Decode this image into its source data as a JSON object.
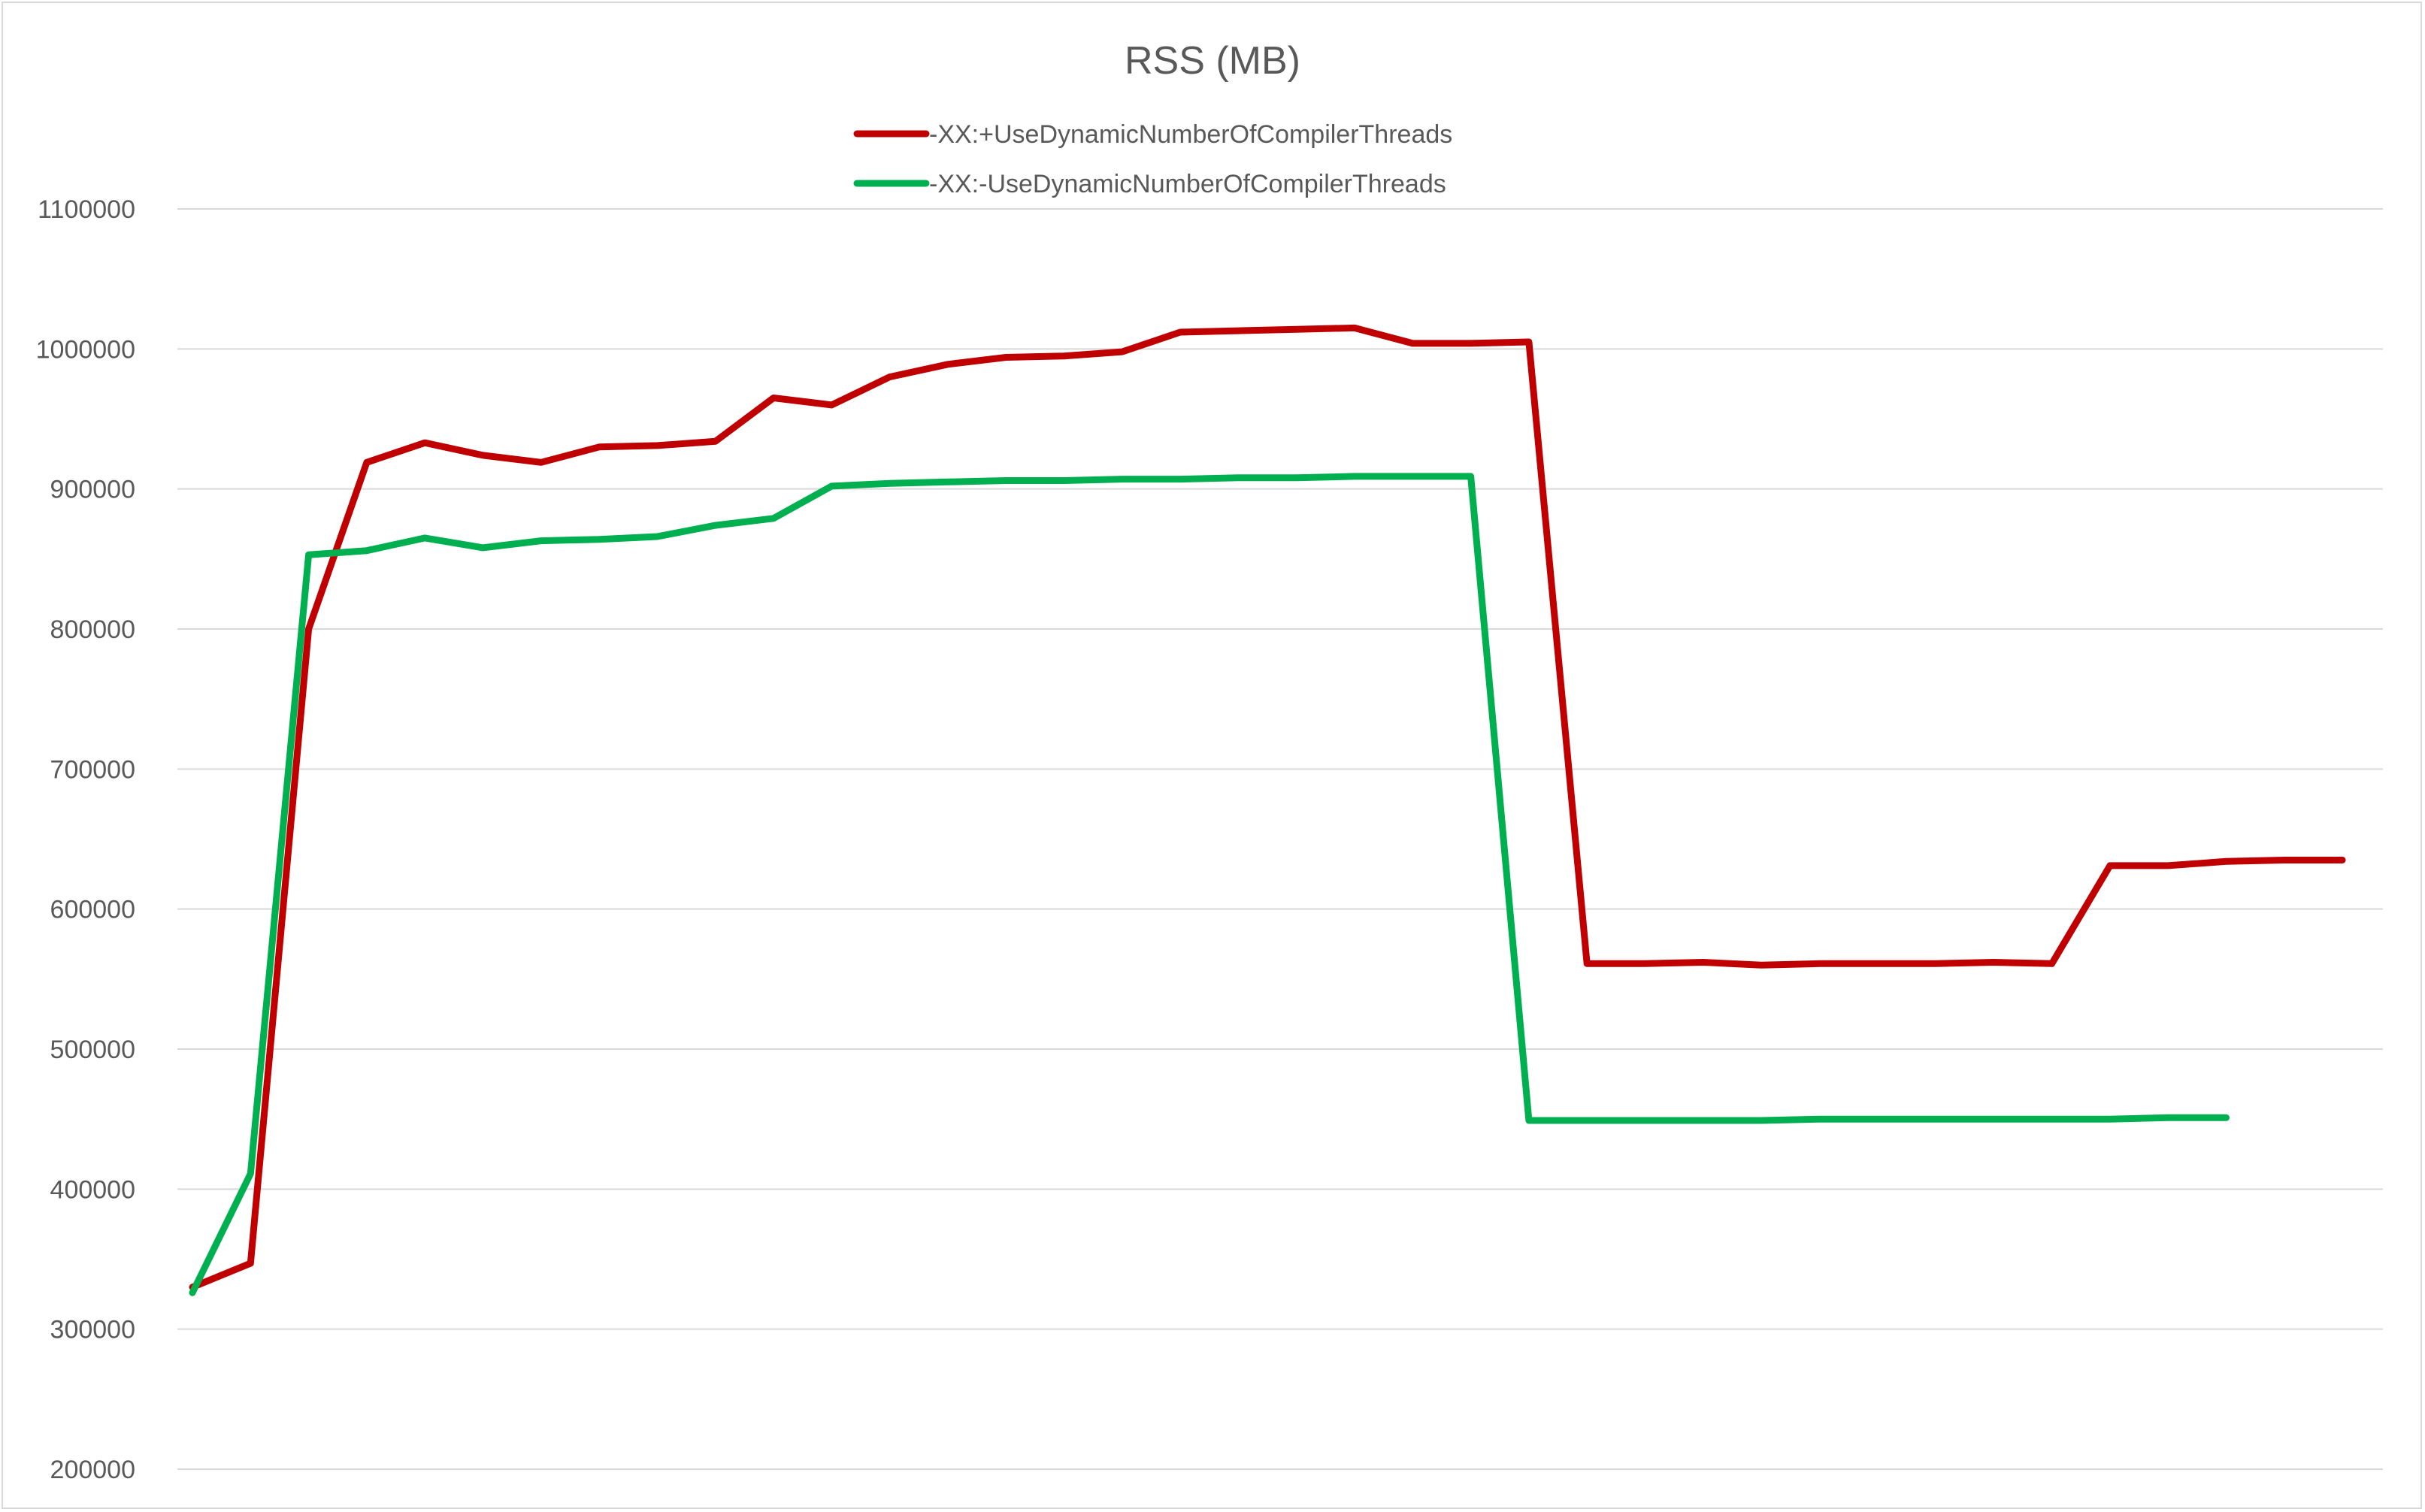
{
  "chart_data": {
    "type": "line",
    "title": "RSS (MB)",
    "xlabel": "",
    "ylabel": "",
    "ylim": [
      200000,
      1100000
    ],
    "yticks": [
      "200000",
      "300000",
      "400000",
      "500000",
      "600000",
      "700000",
      "800000",
      "900000",
      "1000000",
      "1100000"
    ],
    "grid": true,
    "legend_position": "top",
    "series": [
      {
        "name": "-XX:+UseDynamicNumberOfCompilerThreads",
        "color": "#c00000",
        "values": [
          330000,
          347000,
          800000,
          919000,
          933000,
          924000,
          919000,
          930000,
          931000,
          934000,
          965000,
          960000,
          980000,
          989000,
          994000,
          995000,
          998000,
          1012000,
          1013000,
          1014000,
          1015000,
          1004000,
          1004000,
          1005000,
          561000,
          561000,
          562000,
          560000,
          561000,
          561000,
          561000,
          562000,
          561000,
          631000,
          631000,
          634000,
          635000,
          635000
        ]
      },
      {
        "name": "-XX:-UseDynamicNumberOfCompilerThreads",
        "color": "#00b050",
        "values": [
          326000,
          411000,
          853000,
          856000,
          865000,
          858000,
          863000,
          864000,
          866000,
          874000,
          879000,
          902000,
          904000,
          905000,
          906000,
          906000,
          907000,
          907000,
          908000,
          908000,
          909000,
          909000,
          909000,
          449000,
          449000,
          449000,
          449000,
          449000,
          450000,
          450000,
          450000,
          450000,
          450000,
          450000,
          451000,
          451000
        ]
      }
    ]
  }
}
